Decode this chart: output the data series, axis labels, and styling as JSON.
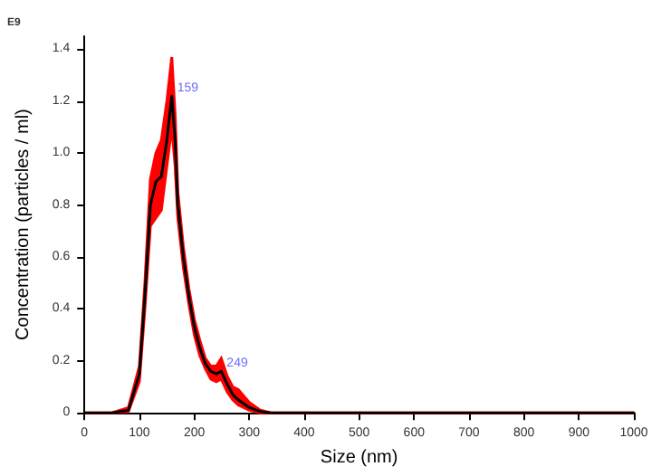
{
  "chart_data": {
    "type": "line",
    "xlabel": "Size (nm)",
    "ylabel": "Concentration (particles / ml)",
    "annotations": [
      "E9",
      {
        "text": "159",
        "x": 159,
        "y": 1.22
      },
      {
        "text": "249",
        "x": 249,
        "y": 0.16
      }
    ],
    "series": [
      {
        "color": "#000000",
        "x": [
          0,
          50,
          80,
          100,
          110,
          120,
          130,
          140,
          150,
          159,
          165,
          170,
          180,
          190,
          200,
          210,
          220,
          230,
          240,
          249,
          260,
          270,
          280,
          300,
          320,
          340,
          1000
        ],
        "values": [
          0,
          0,
          0.01,
          0.15,
          0.45,
          0.8,
          0.89,
          0.91,
          1.05,
          1.22,
          1.05,
          0.8,
          0.6,
          0.45,
          0.33,
          0.25,
          0.19,
          0.16,
          0.15,
          0.16,
          0.11,
          0.07,
          0.05,
          0.02,
          0.005,
          0,
          0
        ],
        "lower": [
          0,
          0,
          0.005,
          0.12,
          0.4,
          0.72,
          0.75,
          0.78,
          0.95,
          1.1,
          0.95,
          0.75,
          0.56,
          0.42,
          0.3,
          0.22,
          0.17,
          0.13,
          0.12,
          0.13,
          0.08,
          0.05,
          0.03,
          0.01,
          0,
          0,
          0
        ],
        "upper": [
          0,
          0,
          0.02,
          0.18,
          0.5,
          0.9,
          1.0,
          1.05,
          1.2,
          1.37,
          1.15,
          0.85,
          0.64,
          0.48,
          0.36,
          0.28,
          0.21,
          0.18,
          0.18,
          0.21,
          0.14,
          0.1,
          0.09,
          0.04,
          0.01,
          0,
          0
        ]
      }
    ],
    "xlim": [
      0,
      1000
    ],
    "xticks": [
      0,
      100,
      200,
      300,
      400,
      500,
      600,
      700,
      800,
      900,
      1000
    ],
    "ylim": [
      0,
      1.45
    ],
    "yticks": [
      0,
      0.2,
      0.4,
      0.6,
      0.8,
      {
        "value": 1,
        "label": "1.0"
      },
      1.2,
      1.4
    ],
    "grid": false,
    "marker": "none",
    "line_style": "solid"
  }
}
